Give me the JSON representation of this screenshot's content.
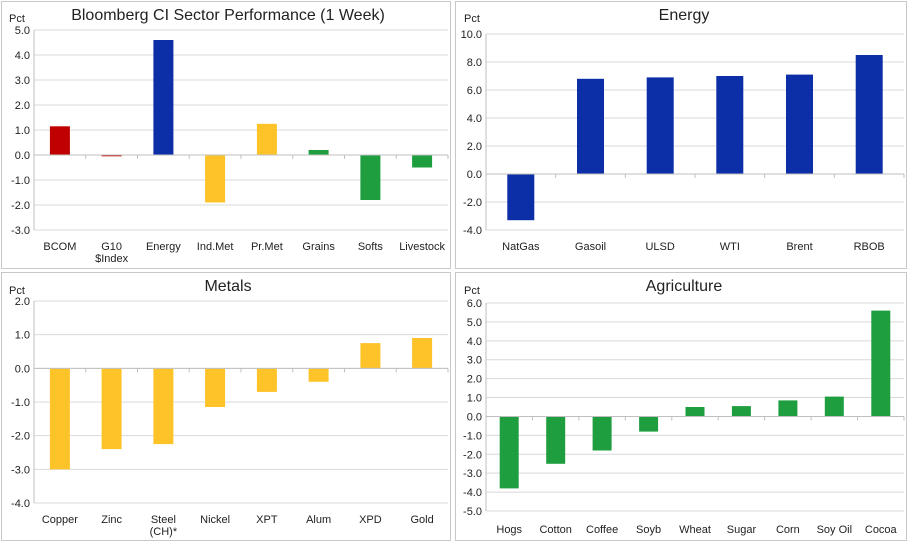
{
  "chart_data": [
    {
      "type": "bar",
      "title": "Bloomberg CI Sector Performance (1 Week)",
      "ylabel": "Pct",
      "categories": [
        [
          "BCOM"
        ],
        [
          "G10",
          "$Index"
        ],
        [
          "Energy"
        ],
        [
          "Ind.Met"
        ],
        [
          "Pr.Met"
        ],
        [
          "Grains"
        ],
        [
          "Softs"
        ],
        [
          "Livestock"
        ]
      ],
      "values": [
        1.15,
        -0.05,
        4.6,
        -1.9,
        1.25,
        0.2,
        -1.8,
        -0.5
      ],
      "colors": [
        "#c00000",
        "#c00000",
        "#0c2fa8",
        "#ffc32a",
        "#ffc32a",
        "#1f9e3f",
        "#1f9e3f",
        "#1f9e3f"
      ],
      "ylim": [
        -3,
        5
      ],
      "yticks": [
        5,
        4,
        3,
        2,
        1,
        0,
        -1,
        -2,
        -3
      ],
      "ytick_labels": [
        "5.0",
        "4.0",
        "3.0",
        "2.0",
        "1.0",
        "0.0",
        "-1.0",
        "-2.0",
        "-3.0"
      ],
      "grid": true
    },
    {
      "type": "bar",
      "title": "Energy",
      "ylabel": "Pct",
      "categories": [
        [
          "NatGas"
        ],
        [
          "Gasoil"
        ],
        [
          "ULSD"
        ],
        [
          "WTI"
        ],
        [
          "Brent"
        ],
        [
          "RBOB"
        ]
      ],
      "values": [
        -3.3,
        6.8,
        6.9,
        7.0,
        7.1,
        8.5
      ],
      "colors": [
        "#0c2fa8",
        "#0c2fa8",
        "#0c2fa8",
        "#0c2fa8",
        "#0c2fa8",
        "#0c2fa8"
      ],
      "ylim": [
        -4,
        10
      ],
      "yticks": [
        10,
        8,
        6,
        4,
        2,
        0,
        -2,
        -4
      ],
      "ytick_labels": [
        "10.0",
        "8.0",
        "6.0",
        "4.0",
        "2.0",
        "0.0",
        "-2.0",
        "-4.0"
      ],
      "grid": true
    },
    {
      "type": "bar",
      "title": "Metals",
      "ylabel": "Pct",
      "categories": [
        [
          "Copper"
        ],
        [
          "Zinc"
        ],
        [
          "Steel",
          "(CH)*"
        ],
        [
          "Nickel"
        ],
        [
          "XPT"
        ],
        [
          "Alum"
        ],
        [
          "XPD"
        ],
        [
          "Gold"
        ]
      ],
      "values": [
        -3.0,
        -2.4,
        -2.25,
        -1.15,
        -0.7,
        -0.4,
        0.75,
        0.9
      ],
      "colors": [
        "#ffc32a",
        "#ffc32a",
        "#ffc32a",
        "#ffc32a",
        "#ffc32a",
        "#ffc32a",
        "#ffc32a",
        "#ffc32a"
      ],
      "ylim": [
        -4,
        2
      ],
      "yticks": [
        2,
        1,
        0,
        -1,
        -2,
        -3,
        -4
      ],
      "ytick_labels": [
        "2.0",
        "1.0",
        "0.0",
        "-1.0",
        "-2.0",
        "-3.0",
        "-4.0"
      ],
      "grid": true
    },
    {
      "type": "bar",
      "title": "Agriculture",
      "ylabel": "Pct",
      "categories": [
        [
          "Hogs"
        ],
        [
          "Cotton"
        ],
        [
          "Coffee"
        ],
        [
          "Soyb"
        ],
        [
          "Wheat"
        ],
        [
          "Sugar"
        ],
        [
          "Corn"
        ],
        [
          "Soy Oil"
        ],
        [
          "Cocoa"
        ]
      ],
      "values": [
        -3.8,
        -2.5,
        -1.8,
        -0.8,
        0.5,
        0.55,
        0.85,
        1.05,
        5.6
      ],
      "colors": [
        "#1f9e3f",
        "#1f9e3f",
        "#1f9e3f",
        "#1f9e3f",
        "#1f9e3f",
        "#1f9e3f",
        "#1f9e3f",
        "#1f9e3f",
        "#1f9e3f"
      ],
      "ylim": [
        -5,
        6
      ],
      "yticks": [
        6,
        5,
        4,
        3,
        2,
        1,
        0,
        -1,
        -2,
        -3,
        -4,
        -5
      ],
      "ytick_labels": [
        "6.0",
        "5.0",
        "4.0",
        "3.0",
        "2.0",
        "1.0",
        "0.0",
        "-1.0",
        "-2.0",
        "-3.0",
        "-4.0",
        "-5.0"
      ],
      "grid": true
    }
  ]
}
